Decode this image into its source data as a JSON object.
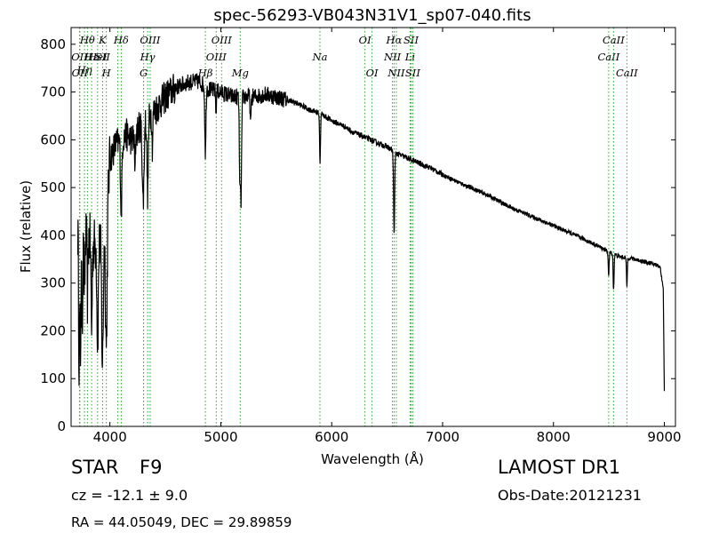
{
  "chart_data": {
    "type": "line",
    "title": "spec-56293-VB043N31V1_sp07-040.fits",
    "xlabel": "Wavelength (Å)",
    "ylabel": "Flux (relative)",
    "xlim": [
      3650,
      9100
    ],
    "ylim": [
      0,
      835
    ],
    "xticks": [
      4000,
      5000,
      6000,
      7000,
      8000,
      9000
    ],
    "yticks": [
      0,
      100,
      200,
      300,
      400,
      500,
      600,
      700,
      800
    ],
    "grid": false,
    "line_color": "#000000",
    "marker_color": "#22aa22",
    "continuum": [
      [
        3710,
        410
      ],
      [
        3750,
        380
      ],
      [
        3790,
        400
      ],
      [
        3850,
        380
      ],
      [
        3900,
        380
      ],
      [
        3960,
        400
      ],
      [
        4000,
        560
      ],
      [
        4050,
        590
      ],
      [
        4100,
        600
      ],
      [
        4150,
        610
      ],
      [
        4200,
        600
      ],
      [
        4300,
        640
      ],
      [
        4400,
        660
      ],
      [
        4500,
        690
      ],
      [
        4600,
        710
      ],
      [
        4700,
        720
      ],
      [
        4800,
        722
      ],
      [
        4900,
        705
      ],
      [
        5000,
        700
      ],
      [
        5100,
        690
      ],
      [
        5200,
        690
      ],
      [
        5300,
        690
      ],
      [
        5400,
        695
      ],
      [
        5500,
        690
      ],
      [
        5600,
        683
      ],
      [
        5700,
        675
      ],
      [
        5800,
        663
      ],
      [
        5900,
        655
      ],
      [
        6000,
        640
      ],
      [
        6100,
        630
      ],
      [
        6200,
        615
      ],
      [
        6300,
        605
      ],
      [
        6400,
        595
      ],
      [
        6500,
        585
      ],
      [
        6600,
        570
      ],
      [
        6700,
        560
      ],
      [
        6800,
        550
      ],
      [
        6900,
        540
      ],
      [
        7000,
        527
      ],
      [
        7200,
        505
      ],
      [
        7400,
        485
      ],
      [
        7600,
        460
      ],
      [
        7800,
        440
      ],
      [
        8000,
        420
      ],
      [
        8200,
        400
      ],
      [
        8400,
        378
      ],
      [
        8500,
        365
      ],
      [
        8600,
        355
      ],
      [
        8700,
        352
      ],
      [
        8800,
        346
      ],
      [
        8900,
        340
      ],
      [
        8960,
        335
      ],
      [
        8990,
        290
      ],
      [
        9000,
        70
      ]
    ],
    "absorptions": [
      [
        3722,
        260,
        4
      ],
      [
        3734,
        250,
        4
      ],
      [
        3750,
        150,
        5
      ],
      [
        3771,
        120,
        4
      ],
      [
        3798,
        130,
        4
      ],
      [
        3835,
        180,
        5
      ],
      [
        3889,
        200,
        6
      ],
      [
        3933,
        260,
        7
      ],
      [
        3968,
        260,
        7
      ],
      [
        4102,
        150,
        6
      ],
      [
        4226,
        80,
        4
      ],
      [
        4300,
        170,
        8
      ],
      [
        4340,
        160,
        6
      ],
      [
        4383,
        70,
        4
      ],
      [
        4861,
        140,
        5
      ],
      [
        4957,
        50,
        3
      ],
      [
        5172,
        170,
        5
      ],
      [
        5183,
        200,
        5
      ],
      [
        5269,
        60,
        4
      ],
      [
        5895,
        105,
        4
      ],
      [
        6563,
        170,
        5
      ],
      [
        8498,
        50,
        4
      ],
      [
        8542,
        75,
        4
      ],
      [
        8662,
        60,
        4
      ]
    ],
    "lines": [
      {
        "x": 3726,
        "labels": [
          {
            "text": "OII",
            "row": 1
          }
        ]
      },
      {
        "x": 3729,
        "labels": [
          {
            "text": "OII",
            "row": 2
          }
        ]
      },
      {
        "x": 3771,
        "labels": [
          {
            "text": "Hη",
            "row": 1.6
          }
        ]
      },
      {
        "x": 3797,
        "labels": [
          {
            "text": "Hθ",
            "row": 0
          }
        ]
      },
      {
        "x": 3835,
        "labels": [
          {
            "text": "Hε",
            "row": 1
          }
        ]
      },
      {
        "x": 3889,
        "labels": [
          {
            "text": "HeI",
            "row": 1
          }
        ]
      },
      {
        "x": 3934,
        "labels": [
          {
            "text": "K",
            "row": 0
          },
          {
            "text": "SII",
            "row": 1
          }
        ]
      },
      {
        "x": 3968,
        "labels": [
          {
            "text": "H",
            "row": 2
          }
        ]
      },
      {
        "x": 4070,
        "labels": []
      },
      {
        "x": 4102,
        "labels": [
          {
            "text": "Hδ",
            "row": 0
          }
        ]
      },
      {
        "x": 4304,
        "labels": [
          {
            "text": "G",
            "row": 2
          }
        ]
      },
      {
        "x": 4340,
        "labels": [
          {
            "text": "Hγ",
            "row": 1
          }
        ]
      },
      {
        "x": 4363,
        "labels": [
          {
            "text": "OIII",
            "row": 0
          }
        ]
      },
      {
        "x": 4861,
        "labels": [
          {
            "text": "Hβ",
            "row": 2
          }
        ]
      },
      {
        "x": 4959,
        "labels": [
          {
            "text": "OIII",
            "row": 1
          }
        ]
      },
      {
        "x": 5007,
        "labels": [
          {
            "text": "OIII",
            "row": 0
          }
        ]
      },
      {
        "x": 5175,
        "labels": [
          {
            "text": "Mg",
            "row": 2
          }
        ]
      },
      {
        "x": 5894,
        "labels": [
          {
            "text": "Na",
            "row": 1
          }
        ]
      },
      {
        "x": 6300,
        "labels": [
          {
            "text": "OI",
            "row": 0
          }
        ]
      },
      {
        "x": 6364,
        "labels": [
          {
            "text": "OI",
            "row": 2
          }
        ]
      },
      {
        "x": 6548,
        "labels": [
          {
            "text": "NII",
            "row": 1
          }
        ]
      },
      {
        "x": 6563,
        "labels": [
          {
            "text": "Hα",
            "row": 0
          }
        ]
      },
      {
        "x": 6583,
        "labels": [
          {
            "text": "NII",
            "row": 2
          }
        ]
      },
      {
        "x": 6707,
        "labels": [
          {
            "text": "Li",
            "row": 1
          }
        ]
      },
      {
        "x": 6716,
        "labels": [
          {
            "text": "SII",
            "row": 0
          }
        ]
      },
      {
        "x": 6731,
        "labels": [
          {
            "text": "SII",
            "row": 2
          }
        ]
      },
      {
        "x": 8498,
        "labels": [
          {
            "text": "CaII",
            "row": 1
          }
        ]
      },
      {
        "x": 8542,
        "labels": [
          {
            "text": "CaII",
            "row": 0
          }
        ]
      },
      {
        "x": 8662,
        "labels": [
          {
            "text": "CaII",
            "row": 2
          }
        ]
      }
    ]
  },
  "info": {
    "object_type": "STAR",
    "subclass": "F9",
    "redshift": "cz = -12.1 ± 9.0",
    "coords": "RA = 44.05049, DEC = 29.89859",
    "survey": "LAMOST DR1",
    "obs_date": "Obs-Date:20121231"
  }
}
